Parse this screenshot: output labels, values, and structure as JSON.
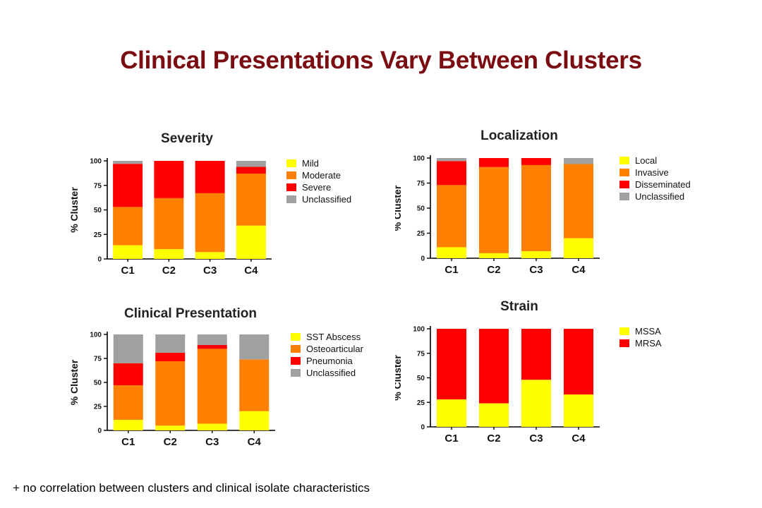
{
  "slide": {
    "title": "Clinical Presentations Vary Between Clusters",
    "footnote": "+ no correlation between clusters and clinical isolate characteristics"
  },
  "chart_data": [
    {
      "type": "bar",
      "stacked": true,
      "title": "Severity",
      "ylabel": "% Cluster",
      "ylim": [
        0,
        100
      ],
      "yticks": [
        0,
        25,
        50,
        75,
        100
      ],
      "categories": [
        "C1",
        "C2",
        "C3",
        "C4"
      ],
      "series": [
        {
          "name": "Mild",
          "color": "#ffff00",
          "values": [
            14,
            10,
            7,
            34
          ]
        },
        {
          "name": "Moderate",
          "color": "#ff8000",
          "values": [
            39,
            52,
            60,
            53
          ]
        },
        {
          "name": "Severe",
          "color": "#ff0000",
          "values": [
            44,
            38,
            33,
            7
          ]
        },
        {
          "name": "Unclassified",
          "color": "#a0a0a0",
          "values": [
            3,
            0,
            0,
            6
          ]
        }
      ],
      "legend": "right"
    },
    {
      "type": "bar",
      "stacked": true,
      "title": "Localization",
      "ylabel": "% Cluster",
      "ylim": [
        0,
        100
      ],
      "yticks": [
        0,
        25,
        50,
        75,
        100
      ],
      "categories": [
        "C1",
        "C2",
        "C3",
        "C4"
      ],
      "series": [
        {
          "name": "Local",
          "color": "#ffff00",
          "values": [
            11,
            5,
            7,
            20
          ]
        },
        {
          "name": "Invasive",
          "color": "#ff8000",
          "values": [
            62,
            86,
            86,
            74
          ]
        },
        {
          "name": "Disseminated",
          "color": "#ff0000",
          "values": [
            24,
            9,
            7,
            0
          ]
        },
        {
          "name": "Unclassified",
          "color": "#a0a0a0",
          "values": [
            3,
            0,
            0,
            6
          ]
        }
      ],
      "legend": "right"
    },
    {
      "type": "bar",
      "stacked": true,
      "title": "Clinical  Presentation",
      "ylabel": "% Cluster",
      "ylim": [
        0,
        100
      ],
      "yticks": [
        0,
        25,
        50,
        75,
        100
      ],
      "categories": [
        "C1",
        "C2",
        "C3",
        "C4"
      ],
      "series": [
        {
          "name": "SST Abscess",
          "color": "#ffff00",
          "values": [
            11,
            5,
            7,
            20
          ]
        },
        {
          "name": "Osteoarticular",
          "color": "#ff8000",
          "values": [
            36,
            67,
            78,
            54
          ]
        },
        {
          "name": "Pneumonia",
          "color": "#ff0000",
          "values": [
            23,
            9,
            4,
            0
          ]
        },
        {
          "name": "Unclassified",
          "color": "#a0a0a0",
          "values": [
            30,
            19,
            11,
            26
          ]
        }
      ],
      "legend": "right"
    },
    {
      "type": "bar",
      "stacked": true,
      "title": "Strain",
      "ylabel": "% Cluster",
      "ylim": [
        0,
        100
      ],
      "yticks": [
        0,
        25,
        50,
        75,
        100
      ],
      "categories": [
        "C1",
        "C2",
        "C3",
        "C4"
      ],
      "series": [
        {
          "name": "MSSA",
          "color": "#ffff00",
          "values": [
            28,
            24,
            48,
            33
          ]
        },
        {
          "name": "MRSA",
          "color": "#ff0000",
          "values": [
            72,
            76,
            52,
            67
          ]
        }
      ],
      "legend": "right"
    }
  ]
}
